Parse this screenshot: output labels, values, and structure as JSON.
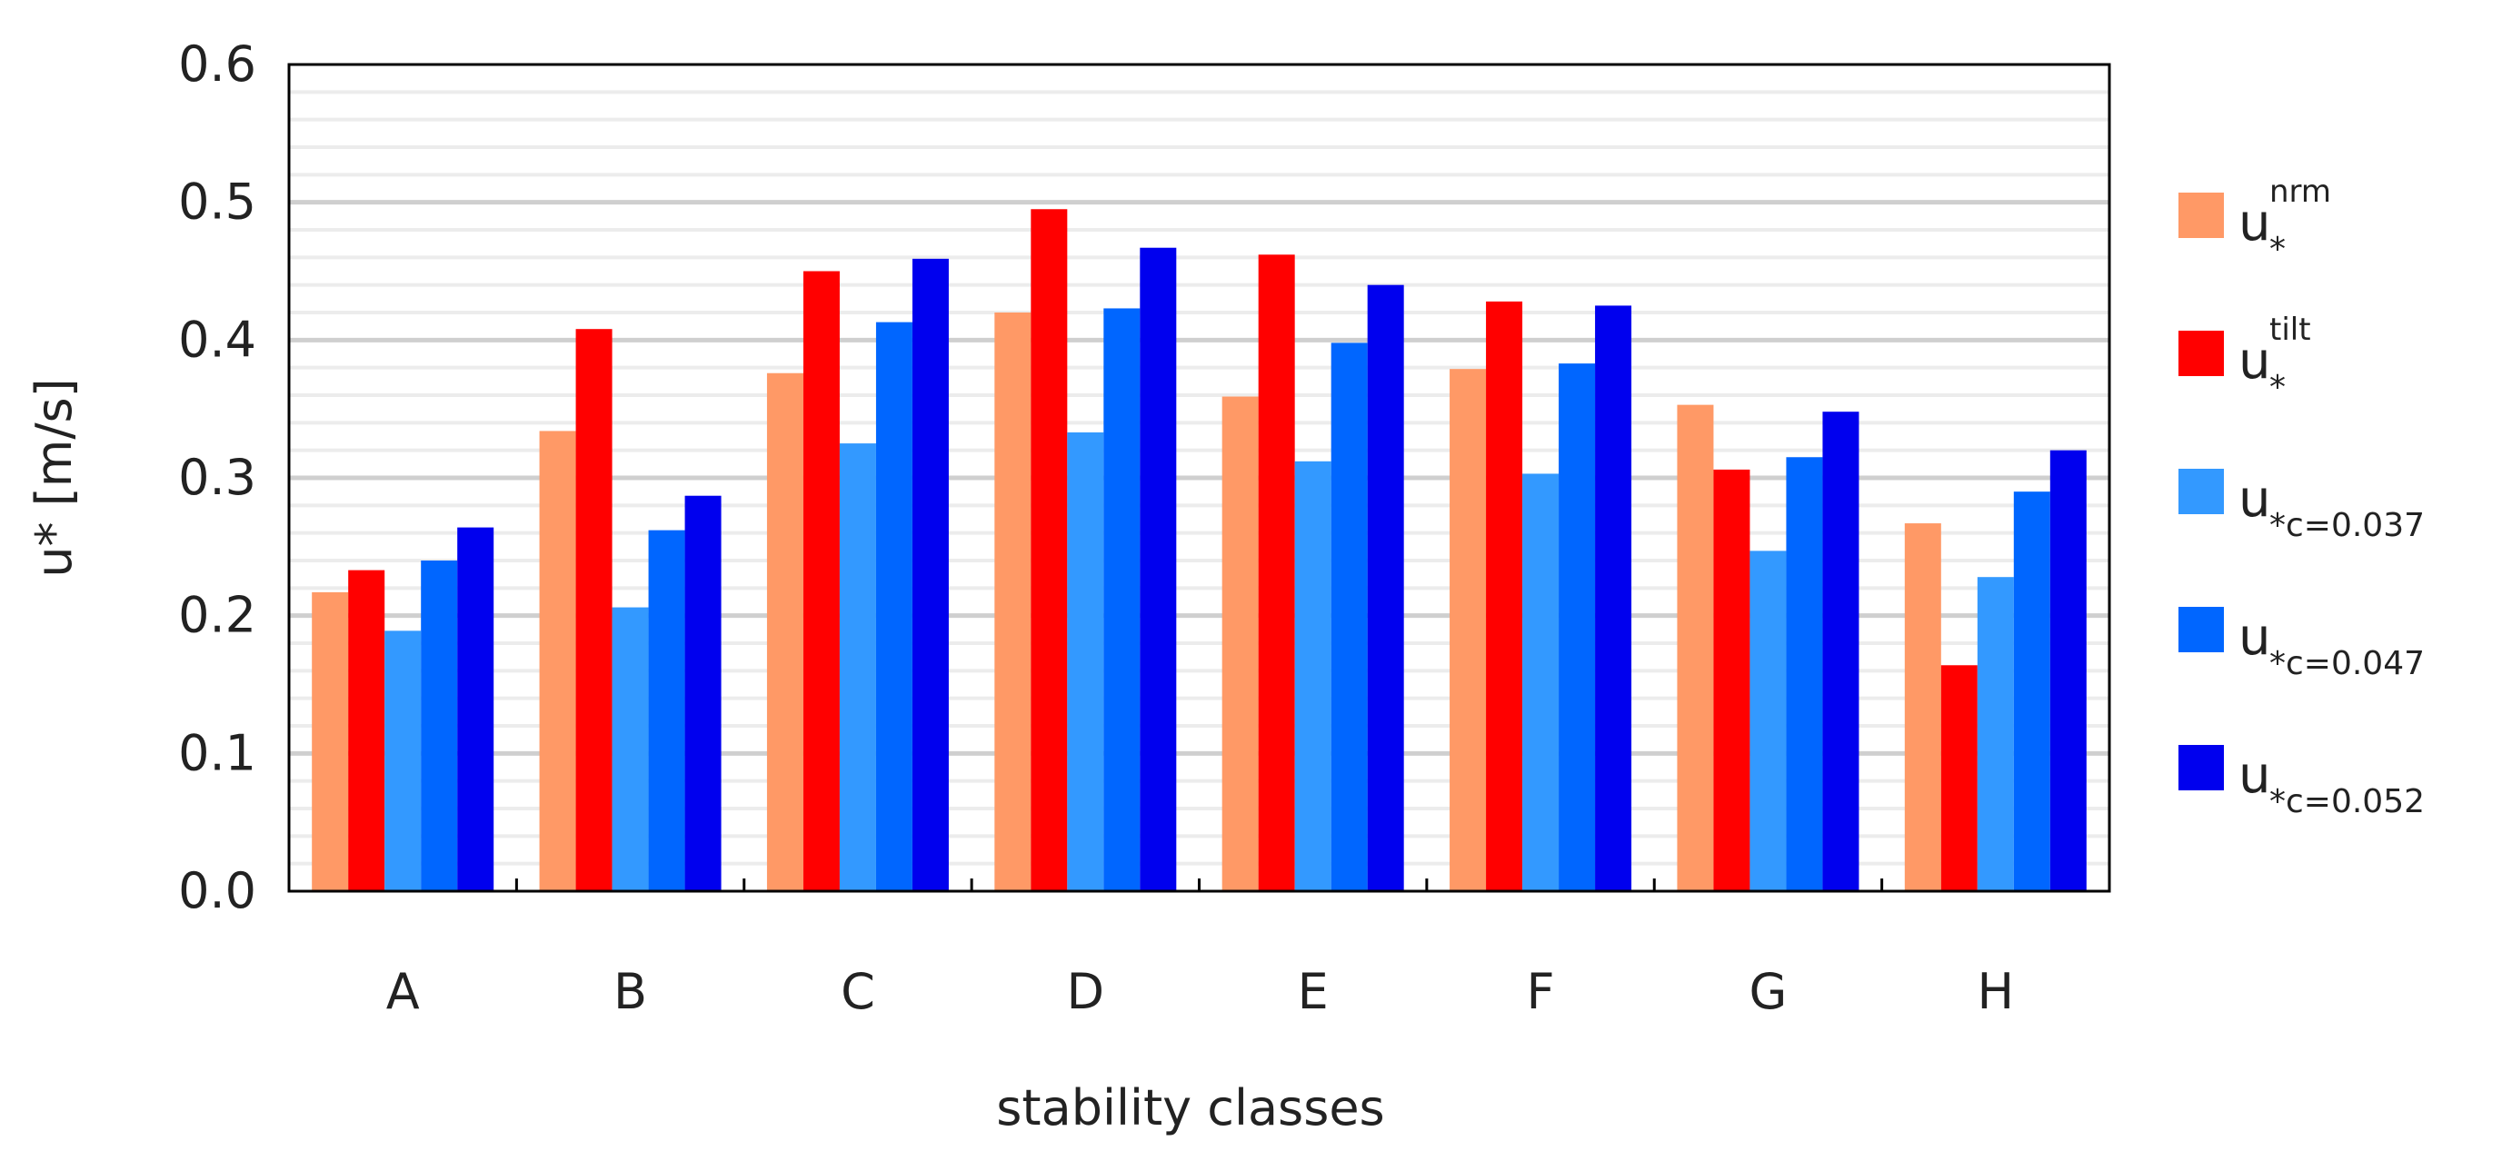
{
  "chart_data": {
    "type": "bar",
    "title": "",
    "xlabel": "stability classes",
    "ylabel": "u* [m/s]",
    "ylim": [
      0,
      0.6
    ],
    "yticks": [
      "0.0",
      "0.1",
      "0.2",
      "0.3",
      "0.4",
      "0.5",
      "0.6"
    ],
    "major_step": 0.1,
    "minor_step": 0.02,
    "grid": true,
    "legend_position": "right",
    "categories": [
      "A",
      "B",
      "C",
      "D",
      "E",
      "F",
      "G",
      "H"
    ],
    "series": [
      {
        "name": "u*nrm",
        "base": "u",
        "sup": "nrm",
        "sub": "*",
        "color": "#FF9966",
        "values": [
          0.217,
          0.334,
          0.376,
          0.42,
          0.359,
          0.379,
          0.353,
          0.267
        ]
      },
      {
        "name": "u*tilt",
        "base": "u",
        "sup": "tilt",
        "sub": "*",
        "color": "#FF0000",
        "values": [
          0.233,
          0.408,
          0.45,
          0.495,
          0.462,
          0.428,
          0.306,
          0.164
        ]
      },
      {
        "name": "u*c=0.037",
        "base": "u",
        "sup": "",
        "sub": "*c=0.037",
        "color": "#3399FF",
        "values": [
          0.189,
          0.206,
          0.325,
          0.333,
          0.312,
          0.303,
          0.247,
          0.228
        ]
      },
      {
        "name": "u*c=0.047",
        "base": "u",
        "sup": "",
        "sub": "*c=0.047",
        "color": "#0066FF",
        "values": [
          0.24,
          0.262,
          0.413,
          0.423,
          0.398,
          0.383,
          0.315,
          0.29
        ]
      },
      {
        "name": "u*c=0.052",
        "base": "u",
        "sup": "",
        "sub": "*c=0.052",
        "color": "#0000EE",
        "values": [
          0.264,
          0.287,
          0.459,
          0.467,
          0.44,
          0.425,
          0.348,
          0.32
        ]
      }
    ]
  }
}
